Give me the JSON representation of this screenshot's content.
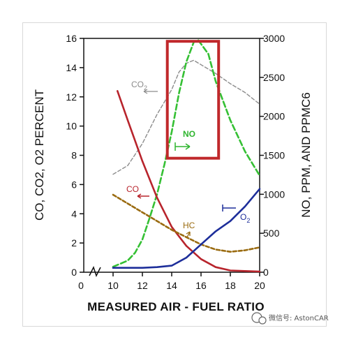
{
  "chart_data": {
    "type": "line",
    "title": "",
    "xlabel": "MEASURED AIR - FUEL RATIO",
    "ylabel_left": "CO, CO2, O2 PERCENT",
    "ylabel_right": "NO, PPM, AND PPMC6",
    "xlim": [
      8,
      20
    ],
    "x_ticks": [
      "0",
      "10",
      "12",
      "14",
      "16",
      "18",
      "20"
    ],
    "ylim_left": [
      0,
      16
    ],
    "y_ticks_left": [
      "0",
      "2",
      "4",
      "6",
      "8",
      "10",
      "12",
      "14",
      "16"
    ],
    "ylim_right": [
      0,
      3000
    ],
    "y_ticks_right": [
      "0",
      "500",
      "1000",
      "1500",
      "2000",
      "2500",
      "3000"
    ],
    "grid": false,
    "highlight_box": {
      "x_range": [
        13.7,
        17.2
      ],
      "y_range_left": [
        7.8,
        15.8
      ],
      "color": "#c0282b"
    },
    "series": [
      {
        "name": "CO2",
        "axis": "left",
        "color": "#8c8c8c",
        "dash": "5,3",
        "x": [
          10,
          11,
          12,
          13,
          14,
          14.5,
          15,
          15.5,
          16,
          17,
          18,
          19,
          20
        ],
        "y": [
          6.7,
          7.3,
          8.8,
          10.8,
          12.5,
          13.7,
          14.3,
          14.5,
          14.2,
          13.6,
          12.9,
          12.3,
          11.5
        ]
      },
      {
        "name": "NO",
        "axis": "right",
        "color": "#35c034",
        "dash": "8,4",
        "x": [
          10,
          11,
          11.5,
          12,
          12.5,
          13,
          13.5,
          14,
          14.5,
          15,
          15.5,
          15.8,
          16.5,
          17,
          18,
          19,
          20
        ],
        "y": [
          70,
          150,
          250,
          420,
          700,
          1000,
          1380,
          1800,
          2300,
          2700,
          2950,
          2980,
          2800,
          2450,
          1950,
          1550,
          1240
        ]
      },
      {
        "name": "CO",
        "axis": "left",
        "color": "#b8242c",
        "dash": "",
        "x": [
          10.3,
          11,
          12,
          13,
          14,
          15,
          16,
          17,
          18,
          19,
          20
        ],
        "y": [
          12.4,
          10.4,
          7.6,
          5.1,
          3.1,
          1.8,
          0.9,
          0.35,
          0.12,
          0.08,
          0.05
        ]
      },
      {
        "name": "HC",
        "axis": "left",
        "color": "#9a6b10",
        "dash": "5,3",
        "x": [
          10,
          11,
          12,
          13,
          14,
          15,
          16,
          17,
          18,
          19,
          20
        ],
        "y": [
          5.3,
          4.7,
          4.1,
          3.5,
          2.9,
          2.4,
          1.9,
          1.55,
          1.4,
          1.5,
          1.7
        ]
      },
      {
        "name": "O2",
        "axis": "left",
        "color": "#1d2e9a",
        "dash": "",
        "x": [
          10,
          11,
          12,
          13,
          14,
          15,
          16,
          17,
          18,
          19,
          20
        ],
        "y": [
          0.3,
          0.3,
          0.3,
          0.35,
          0.45,
          1.0,
          1.9,
          2.8,
          3.5,
          4.5,
          5.7
        ]
      }
    ],
    "labels": {
      "co2": "CO",
      "co2_sub": "2",
      "no": "NO",
      "co": "CO",
      "hc": "HC",
      "o2": "O",
      "o2_sub": "2"
    }
  },
  "watermark": "微信号: AstonCAR"
}
